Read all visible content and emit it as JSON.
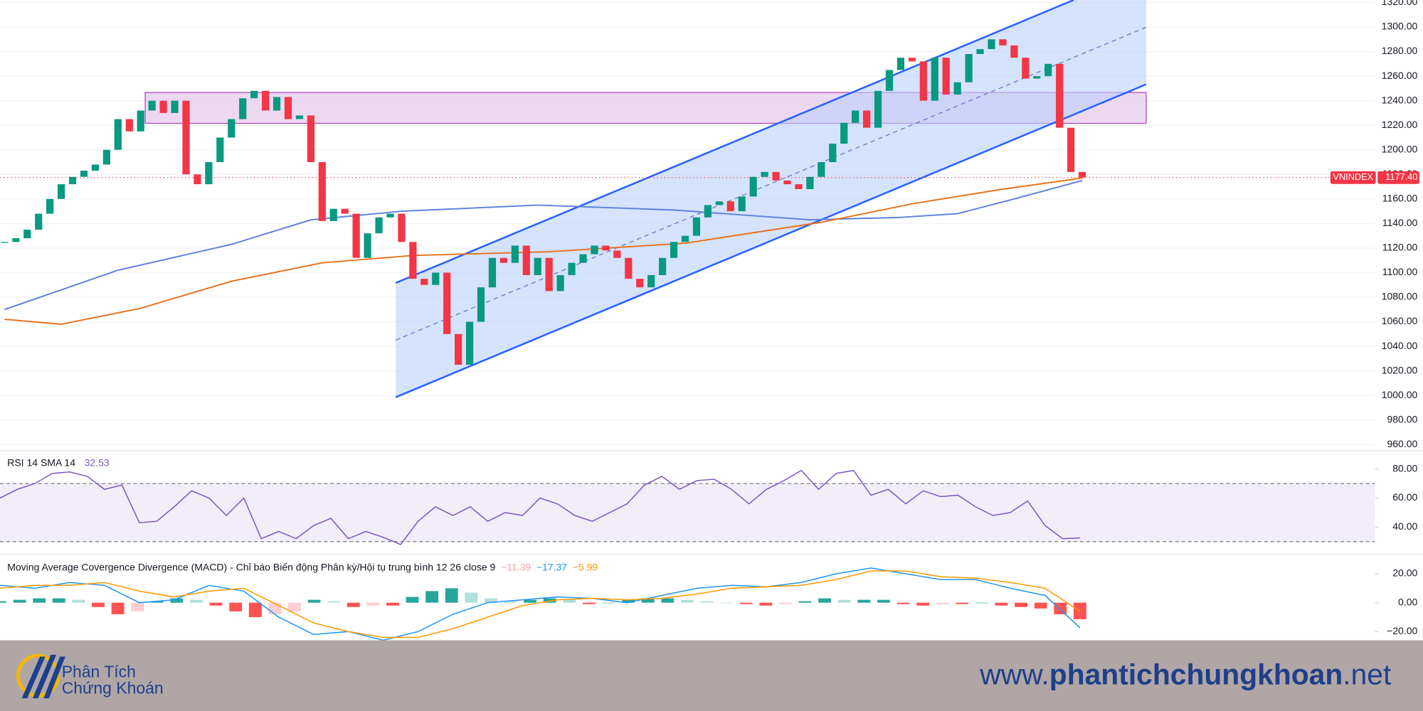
{
  "chart_data": [
    {
      "type": "candlestick",
      "symbol": "VNINDEX",
      "close": [
        1125,
        1128,
        1135,
        1148,
        1160,
        1172,
        1178,
        1183,
        1188,
        1200,
        1225,
        1215,
        1232,
        1240,
        1230,
        1240,
        1180,
        1172,
        1190,
        1210,
        1225,
        1242,
        1248,
        1232,
        1243,
        1225,
        1228,
        1190,
        1142,
        1152,
        1148,
        1112,
        1132,
        1145,
        1148,
        1125,
        1095,
        1090,
        1100,
        1050,
        1025,
        1060,
        1088,
        1112,
        1108,
        1122,
        1098,
        1112,
        1085,
        1098,
        1108,
        1115,
        1122,
        1118,
        1112,
        1095,
        1088,
        1098,
        1112,
        1125,
        1130,
        1145,
        1155,
        1158,
        1150,
        1162,
        1178,
        1182,
        1175,
        1172,
        1168,
        1178,
        1190,
        1205,
        1222,
        1232,
        1218,
        1248,
        1265,
        1275,
        1272,
        1240,
        1275,
        1245,
        1255,
        1278,
        1282,
        1290,
        1285,
        1275,
        1258,
        1260,
        1270,
        1218,
        1182,
        1177.4
      ],
      "up_color": "#089981",
      "down_color": "#f23645",
      "overlays": [
        {
          "color": "#5b7fde",
          "x": [
            0,
            10,
            20,
            27,
            35,
            47,
            59,
            71,
            79,
            84,
            89,
            95
          ],
          "values": [
            1070,
            1102,
            1123,
            1143,
            1150,
            1155,
            1151,
            1143,
            1145,
            1148,
            1160,
            1175
          ]
        },
        {
          "color": "#e8701a",
          "x": [
            0,
            5,
            12,
            20,
            28,
            36,
            48,
            60,
            72,
            80,
            88,
            95
          ],
          "values": [
            1062,
            1058,
            1071,
            1093,
            1108,
            1114,
            1117,
            1124,
            1141,
            1156,
            1168,
            1177
          ]
        }
      ],
      "last_price": 1177.4,
      "last_price_label": "1177.40",
      "ylim": [
        955,
        1322
      ],
      "yticks": [
        {
          "value": 960,
          "label": "960.00"
        },
        {
          "value": 980,
          "label": "980.00"
        },
        {
          "value": 1000,
          "label": "1000.00"
        },
        {
          "value": 1020,
          "label": "1020.00"
        },
        {
          "value": 1040,
          "label": "1040.00"
        },
        {
          "value": 1060,
          "label": "1060.00"
        },
        {
          "value": 1080,
          "label": "1080.00"
        },
        {
          "value": 1100,
          "label": "1100.00"
        },
        {
          "value": 1120,
          "label": "1120.00"
        },
        {
          "value": 1140,
          "label": "1140.00"
        },
        {
          "value": 1160,
          "label": "1160.00"
        },
        {
          "value": 1180,
          "label": "1180.00"
        },
        {
          "value": 1200,
          "label": "1200.00"
        },
        {
          "value": 1220,
          "label": "1220.00"
        },
        {
          "value": 1240,
          "label": "1240.00"
        },
        {
          "value": 1260,
          "label": "1260.00"
        },
        {
          "value": 1280,
          "label": "1280.00"
        },
        {
          "value": 1300,
          "label": "1300.00"
        },
        {
          "value": 1320,
          "label": "1320.00"
        }
      ],
      "grid": true
    },
    {
      "type": "line",
      "title": "RSI 14 SMA 14",
      "last_value": 32.53,
      "color": "#7e57c2",
      "values": [
        60,
        66,
        70,
        77,
        78,
        75,
        66,
        69,
        43,
        44,
        54,
        65,
        60,
        48,
        60,
        32,
        37,
        32,
        41,
        46,
        32,
        37,
        33,
        28,
        44,
        54,
        48,
        54,
        44,
        50,
        48,
        60,
        56,
        48,
        44,
        50,
        56,
        69,
        75,
        66,
        72,
        73,
        66,
        56,
        66,
        72,
        79,
        66,
        77,
        79,
        62,
        66,
        56,
        65,
        61,
        62,
        54,
        48,
        50,
        58,
        41,
        32,
        32.53
      ],
      "band": [
        30,
        70
      ],
      "ylim": [
        22,
        92
      ],
      "yticks": [
        {
          "value": 40,
          "label": "40.00"
        },
        {
          "value": 60,
          "label": "60.00"
        },
        {
          "value": 80,
          "label": "80.00"
        }
      ]
    },
    {
      "type": "macd",
      "title": "Moving Average Covergence Divergence (MACD) - Chỉ báo Biến động Phân kỳ/Hội tụ trung bình 12 26 close 9",
      "series": [
        {
          "color": "#f7a1a1",
          "last_value": -11.39,
          "last_label": "−11.39",
          "values": [
            1,
            2,
            3,
            3,
            2,
            -3,
            -8,
            -6,
            1,
            3,
            2,
            -2,
            -6,
            -10,
            -8,
            -6,
            2,
            1,
            -3,
            -2,
            -2,
            4,
            8,
            10,
            7,
            3,
            1,
            2,
            3,
            2,
            -1,
            0,
            2,
            3,
            3,
            2,
            1,
            0,
            -1,
            -2,
            -1,
            1,
            3,
            2,
            2,
            2,
            -1,
            -2,
            -1,
            -1,
            0,
            -2,
            -3,
            -4,
            -8,
            -11.39
          ]
        },
        {
          "color": "#2196f3",
          "last_value": -17.37,
          "last_label": "−17.37",
          "values": [
            12,
            10,
            14,
            12,
            0,
            2,
            12,
            8,
            -10,
            -22,
            -20,
            -26,
            -20,
            -8,
            0,
            2,
            4,
            3,
            0,
            5,
            10,
            12,
            11,
            14,
            20,
            24,
            20,
            16,
            16,
            10,
            5,
            -17.37
          ]
        },
        {
          "color": "#ff9800",
          "last_value": -5.99,
          "last_label": "−5.99",
          "values": [
            10,
            12,
            12,
            14,
            8,
            4,
            8,
            10,
            -2,
            -14,
            -20,
            -24,
            -24,
            -18,
            -10,
            -2,
            2,
            3,
            2,
            3,
            6,
            10,
            11,
            12,
            16,
            22,
            22,
            18,
            17,
            14,
            10,
            -5.99
          ]
        }
      ],
      "ylim": [
        -26,
        33
      ],
      "yticks": [
        {
          "value": -20,
          "label": "−20.00"
        },
        {
          "value": 0,
          "label": "0.00"
        },
        {
          "value": 20,
          "label": "20.00"
        }
      ]
    }
  ],
  "footer": {
    "logo_line1": "Phân Tích",
    "logo_line2": "Chứng Khoán",
    "url_prefix": "www.",
    "url_domain": "phantichchungkhoan",
    "url_suffix": ".net"
  }
}
